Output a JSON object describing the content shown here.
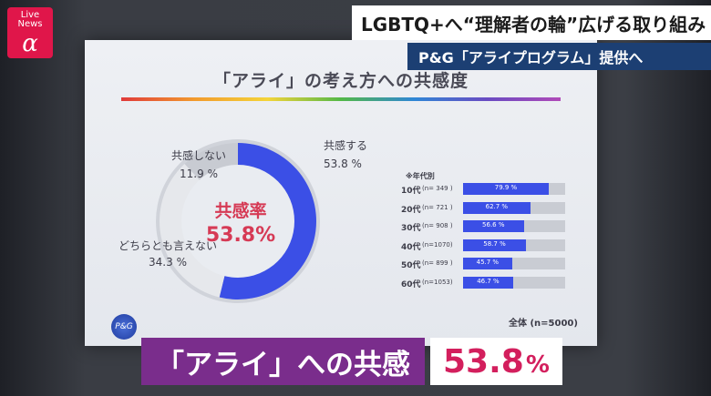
{
  "broadcast": {
    "badge_line1": "Live",
    "badge_line2": "News",
    "badge_symbol": "α",
    "headline1": "LGBTQ+へ“理解者の輪”広げる取り組み",
    "headline2": "P&G「アライプログラム」提供へ",
    "lower_third_text": "「アライ」への共感",
    "lower_third_value": "53.8",
    "lower_third_unit": "%",
    "colors": {
      "badge": "#e0164a",
      "lower_left": "#7a2d8c",
      "lower_value": "#d31f5d",
      "headline2_bg": "#1c3f73"
    }
  },
  "slide": {
    "title": "「アライ」の考え方への共感度",
    "center_label": "共感率",
    "center_value": "53.8%",
    "logo_text": "P&G",
    "segments": [
      {
        "label": "共感する",
        "value_text": "53.8 %",
        "value": 53.8,
        "color": "#3b4fe6"
      },
      {
        "label": "どちらとも言えない",
        "value_text": "34.3 %",
        "value": 34.3,
        "color": "#e6e8ec"
      },
      {
        "label": "共感しない",
        "value_text": "11.9 %",
        "value": 11.9,
        "color": "#c8cbd2"
      }
    ],
    "age_header": "※年代別",
    "age_rows": [
      {
        "name": "10代",
        "n": "(n= 349 )",
        "pct_text": "79.9 %",
        "value": 79.9
      },
      {
        "name": "20代",
        "n": "(n= 721 )",
        "pct_text": "62.7 %",
        "value": 62.7
      },
      {
        "name": "30代",
        "n": "(n= 908 )",
        "pct_text": "56.6 %",
        "value": 56.6
      },
      {
        "name": "40代",
        "n": "(n=1070)",
        "pct_text": "58.7 %",
        "value": 58.7
      },
      {
        "name": "50代",
        "n": "(n= 899 )",
        "pct_text": "45.7 %",
        "value": 45.7
      },
      {
        "name": "60代",
        "n": "(n=1053)",
        "pct_text": "46.7 %",
        "value": 46.7
      }
    ],
    "total": "全体 (n=5000)"
  }
}
